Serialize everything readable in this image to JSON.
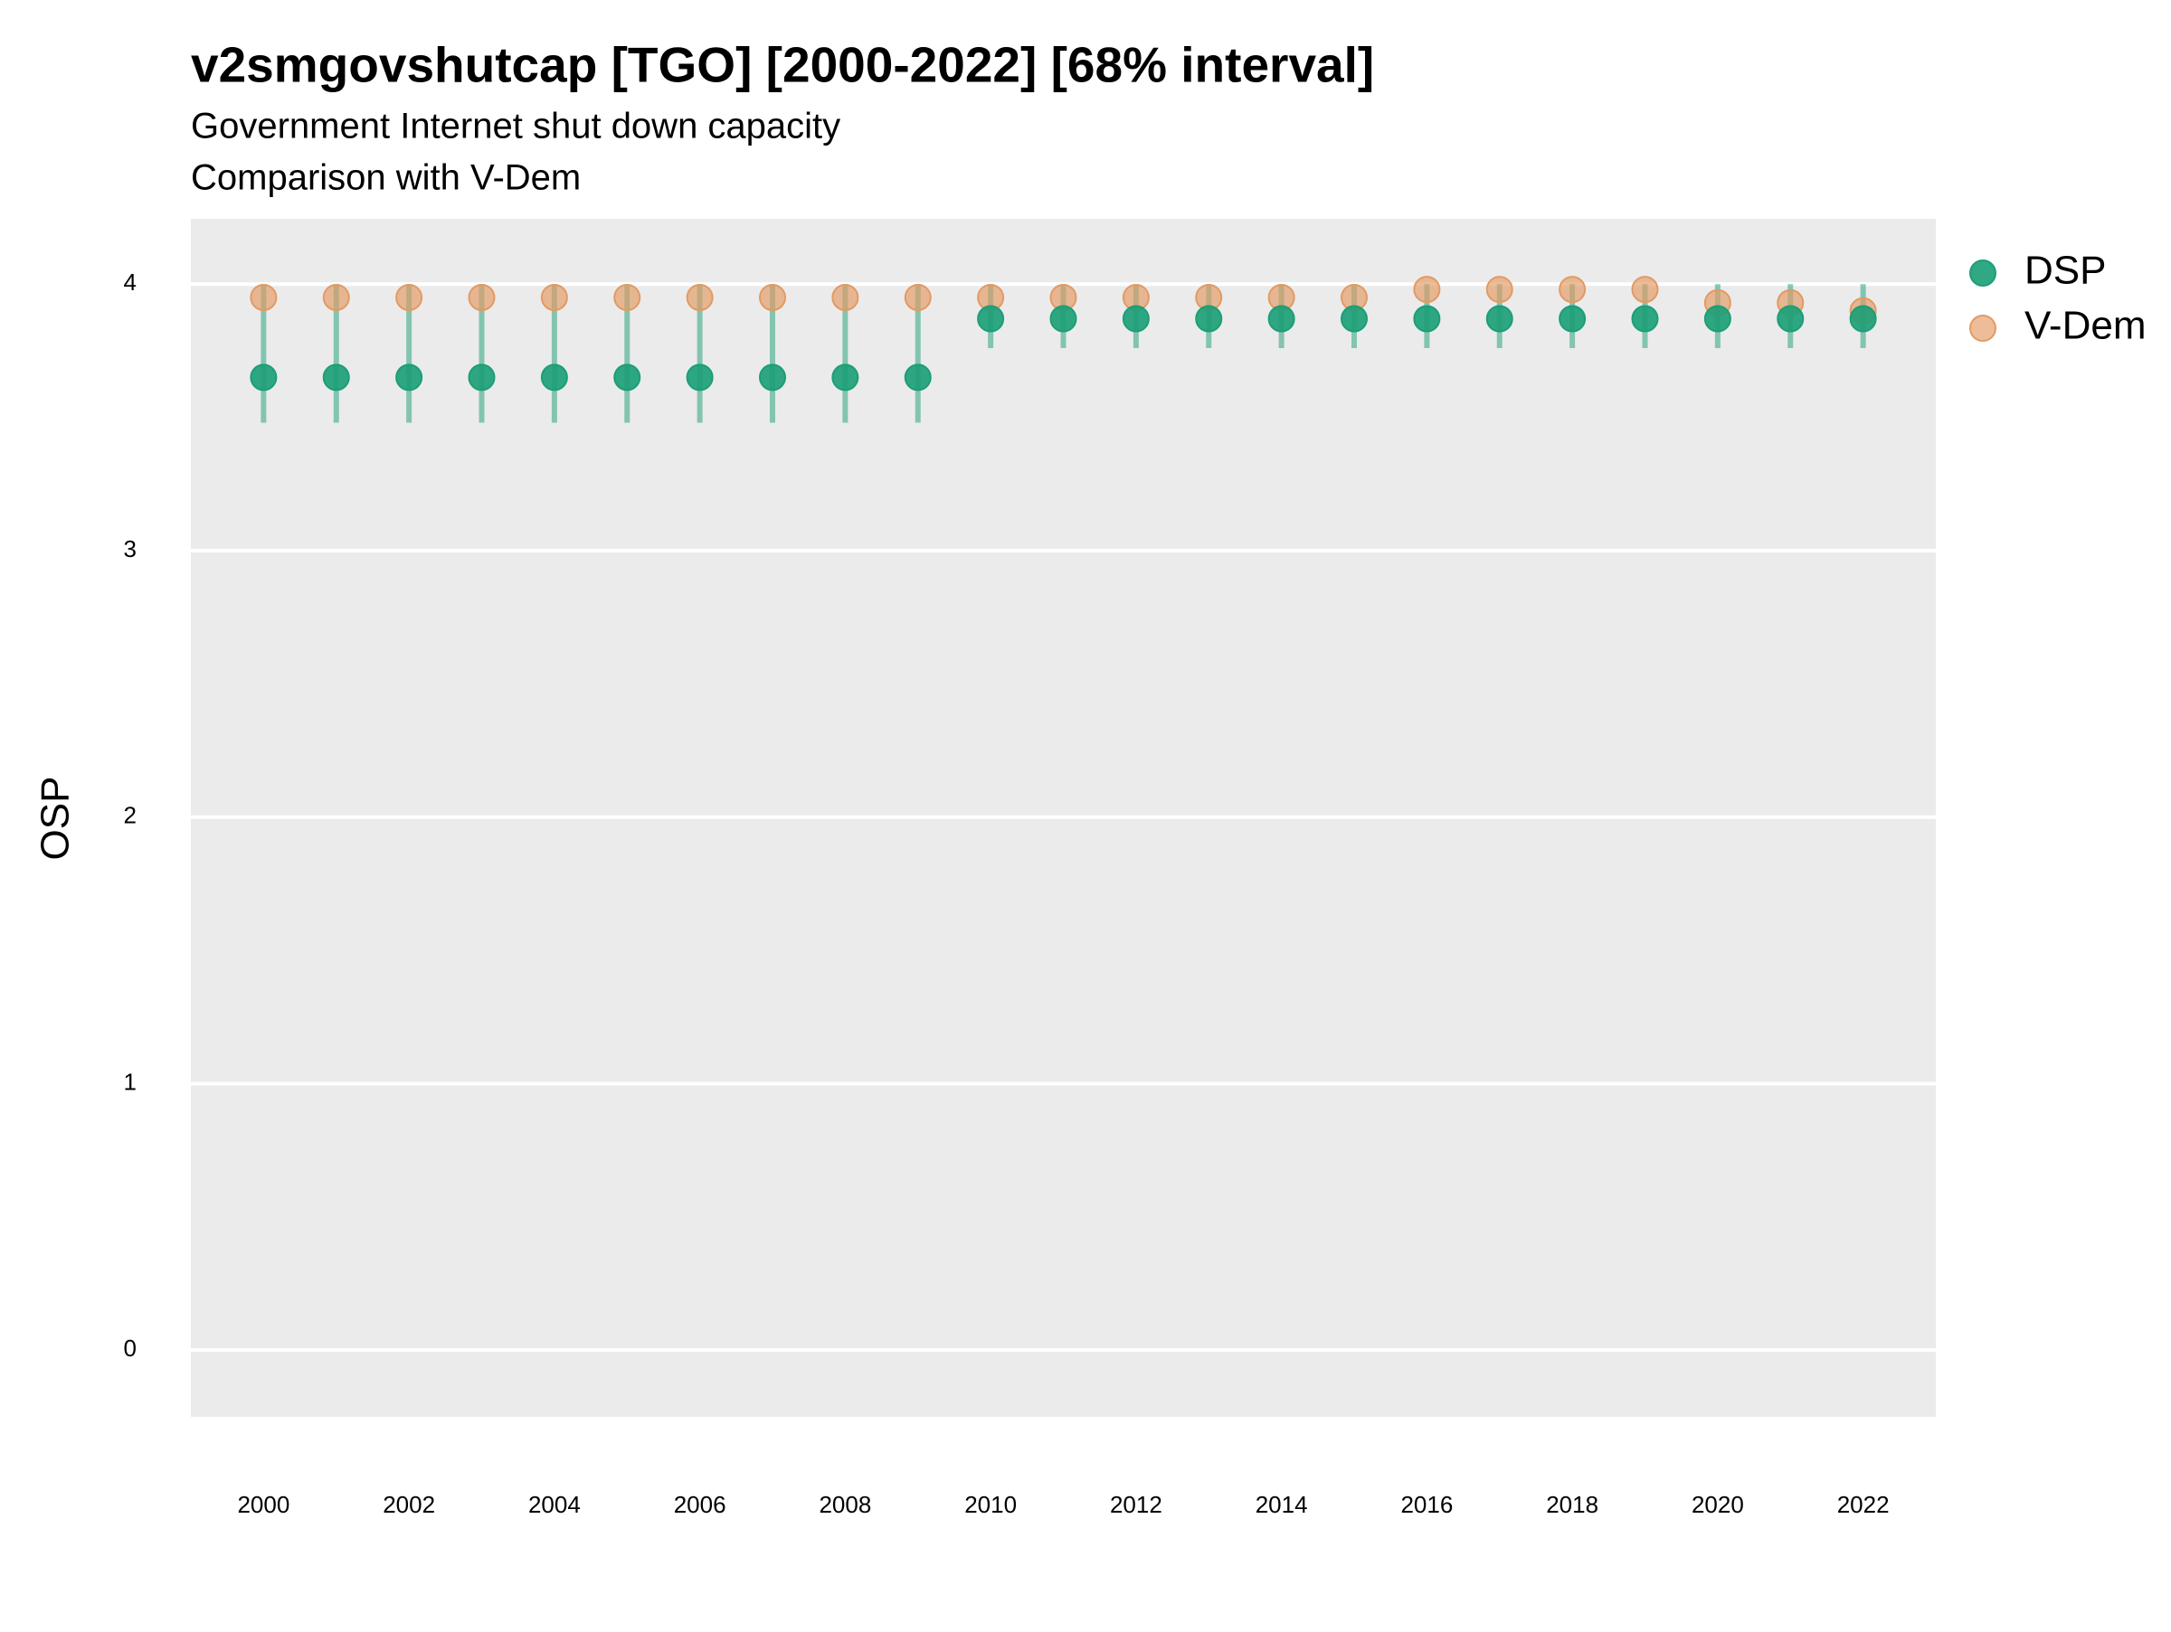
{
  "chart_data": {
    "type": "scatter",
    "title": "v2smgovshutcap [TGO] [2000-2022] [68% interval]",
    "subtitle": "Government Internet shut down capacity",
    "caption": "Comparison with V-Dem",
    "y_label": "OSP",
    "x": [
      2000,
      2001,
      2002,
      2003,
      2004,
      2005,
      2006,
      2007,
      2008,
      2009,
      2010,
      2011,
      2012,
      2013,
      2014,
      2015,
      2016,
      2017,
      2018,
      2019,
      2020,
      2021,
      2022
    ],
    "series": [
      {
        "name": "V-Dem",
        "color": "#e39a62",
        "values": [
          3.95,
          3.95,
          3.95,
          3.95,
          3.95,
          3.95,
          3.95,
          3.95,
          3.95,
          3.95,
          3.95,
          3.95,
          3.95,
          3.95,
          3.95,
          3.95,
          3.98,
          3.98,
          3.98,
          3.98,
          3.93,
          3.93,
          3.9
        ]
      },
      {
        "name": "DSP",
        "color": "#1b9e77",
        "values": [
          3.65,
          3.65,
          3.65,
          3.65,
          3.65,
          3.65,
          3.65,
          3.65,
          3.65,
          3.65,
          3.87,
          3.87,
          3.87,
          3.87,
          3.87,
          3.87,
          3.87,
          3.87,
          3.87,
          3.87,
          3.87,
          3.87,
          3.87
        ],
        "lower": [
          3.48,
          3.48,
          3.48,
          3.48,
          3.48,
          3.48,
          3.48,
          3.48,
          3.48,
          3.48,
          3.76,
          3.76,
          3.76,
          3.76,
          3.76,
          3.76,
          3.76,
          3.76,
          3.76,
          3.76,
          3.76,
          3.76,
          3.76
        ],
        "upper": [
          4,
          4,
          4,
          4,
          4,
          4,
          4,
          4,
          4,
          4,
          4,
          4,
          4,
          4,
          4,
          4,
          4,
          4,
          4,
          4,
          4,
          4,
          4
        ]
      }
    ],
    "legend_order": [
      1,
      0
    ],
    "xlim": [
      1999,
      2023
    ],
    "xticks": [
      2000,
      2002,
      2004,
      2006,
      2008,
      2010,
      2012,
      2014,
      2016,
      2018,
      2020,
      2022
    ],
    "ylim": [
      -0.25,
      4.245
    ],
    "yticks": [
      0,
      1,
      2,
      3,
      4
    ],
    "grid": true
  }
}
